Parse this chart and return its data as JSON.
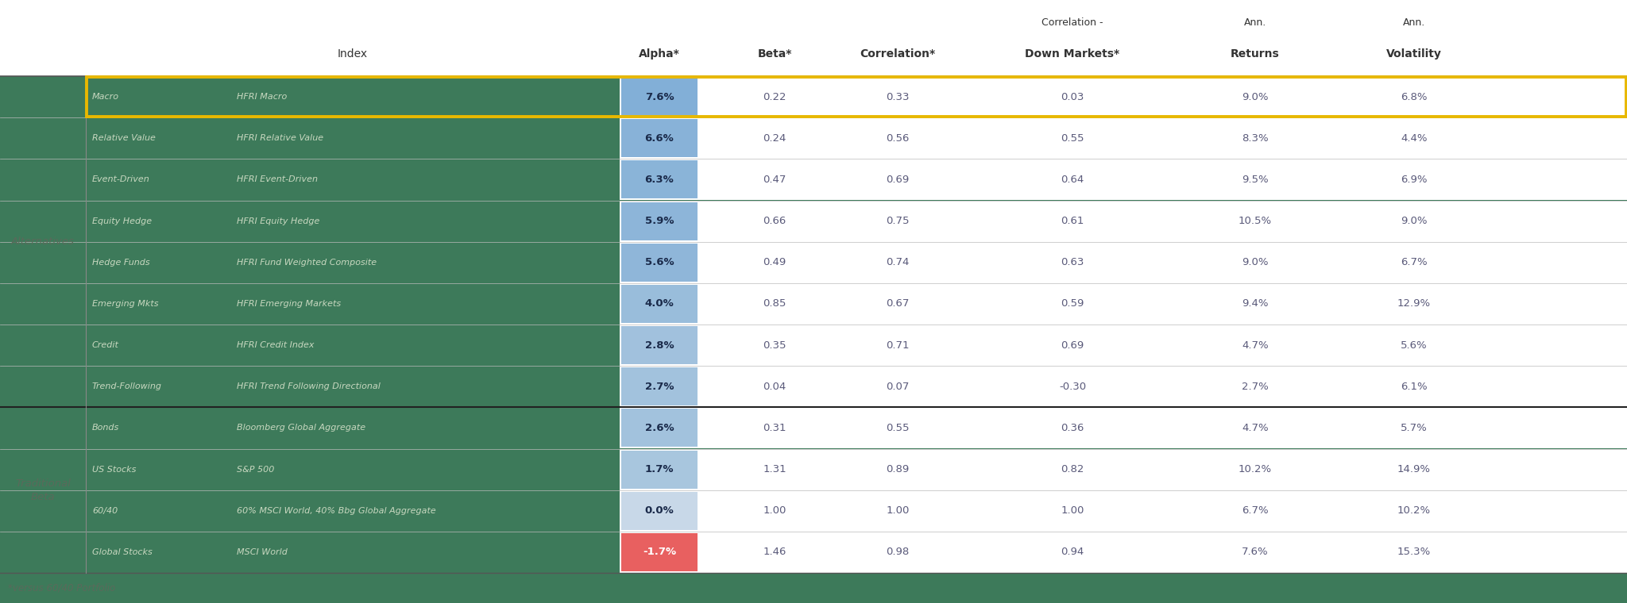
{
  "categories": [
    {
      "group": "Alternatives",
      "label": "Macro",
      "index": "HFRI Macro",
      "alpha": "7.6%",
      "alpha_val": 7.6,
      "beta": "0.22",
      "corr": "0.33",
      "corr_down": "0.03",
      "returns": "9.0%",
      "vol": "6.8%",
      "highlight": true
    },
    {
      "group": "Alternatives",
      "label": "Relative Value",
      "index": "HFRI Relative Value",
      "alpha": "6.6%",
      "alpha_val": 6.6,
      "beta": "0.24",
      "corr": "0.56",
      "corr_down": "0.55",
      "returns": "8.3%",
      "vol": "4.4%",
      "highlight": false
    },
    {
      "group": "Alternatives",
      "label": "Event-Driven",
      "index": "HFRI Event-Driven",
      "alpha": "6.3%",
      "alpha_val": 6.3,
      "beta": "0.47",
      "corr": "0.69",
      "corr_down": "0.64",
      "returns": "9.5%",
      "vol": "6.9%",
      "highlight": false
    },
    {
      "group": "Alternatives",
      "label": "Equity Hedge",
      "index": "HFRI Equity Hedge",
      "alpha": "5.9%",
      "alpha_val": 5.9,
      "beta": "0.66",
      "corr": "0.75",
      "corr_down": "0.61",
      "returns": "10.5%",
      "vol": "9.0%",
      "highlight": false
    },
    {
      "group": "Alternatives",
      "label": "Hedge Funds",
      "index": "HFRI Fund Weighted Composite",
      "alpha": "5.6%",
      "alpha_val": 5.6,
      "beta": "0.49",
      "corr": "0.74",
      "corr_down": "0.63",
      "returns": "9.0%",
      "vol": "6.7%",
      "highlight": false
    },
    {
      "group": "Alternatives",
      "label": "Emerging Mkts",
      "index": "HFRI Emerging Markets",
      "alpha": "4.0%",
      "alpha_val": 4.0,
      "beta": "0.85",
      "corr": "0.67",
      "corr_down": "0.59",
      "returns": "9.4%",
      "vol": "12.9%",
      "highlight": false
    },
    {
      "group": "Alternatives",
      "label": "Credit",
      "index": "HFRI Credit Index",
      "alpha": "2.8%",
      "alpha_val": 2.8,
      "beta": "0.35",
      "corr": "0.71",
      "corr_down": "0.69",
      "returns": "4.7%",
      "vol": "5.6%",
      "highlight": false
    },
    {
      "group": "Alternatives",
      "label": "Trend-Following",
      "index": "HFRI Trend Following Directional",
      "alpha": "2.7%",
      "alpha_val": 2.7,
      "beta": "0.04",
      "corr": "0.07",
      "corr_down": "-0.30",
      "returns": "2.7%",
      "vol": "6.1%",
      "highlight": false
    },
    {
      "group": "Traditional Beta",
      "label": "Bonds",
      "index": "Bloomberg Global Aggregate",
      "alpha": "2.6%",
      "alpha_val": 2.6,
      "beta": "0.31",
      "corr": "0.55",
      "corr_down": "0.36",
      "returns": "4.7%",
      "vol": "5.7%",
      "highlight": false
    },
    {
      "group": "Traditional Beta",
      "label": "US Stocks",
      "index": "S&P 500",
      "alpha": "1.7%",
      "alpha_val": 1.7,
      "beta": "1.31",
      "corr": "0.89",
      "corr_down": "0.82",
      "returns": "10.2%",
      "vol": "14.9%",
      "highlight": false
    },
    {
      "group": "Traditional Beta",
      "label": "60/40",
      "index": "60% MSCI World, 40% Bbg Global Aggregate",
      "alpha": "0.0%",
      "alpha_val": 0.0,
      "beta": "1.00",
      "corr": "1.00",
      "corr_down": "1.00",
      "returns": "6.7%",
      "vol": "10.2%",
      "highlight": false
    },
    {
      "group": "Traditional Beta",
      "label": "Global Stocks",
      "index": "MSCI World",
      "alpha": "-1.7%",
      "alpha_val": -1.7,
      "beta": "1.46",
      "corr": "0.98",
      "corr_down": "0.94",
      "returns": "7.6%",
      "vol": "15.3%",
      "highlight": false
    }
  ],
  "footnote": "*versus 60/40 Portfolio",
  "bg_color_green": "#3d7a5a",
  "bg_color_white": "#ffffff",
  "row_green_bg": "#3d7a5a",
  "row_white_bg": "#f5f5f5",
  "text_on_green": "#c8d8c0",
  "text_on_white_num": "#5a5a7a",
  "text_on_white_dark": "#333344",
  "alpha_text_dark": "#1a2a4a",
  "alpha_neg_text": "#cc2222",
  "highlight_border_color": "#e8b800",
  "separator_thick": "#222222",
  "separator_thin": "#bbbbbb",
  "header_text": "#333333",
  "group_label_color": "#5a6a5a",
  "footnote_color": "#555555"
}
